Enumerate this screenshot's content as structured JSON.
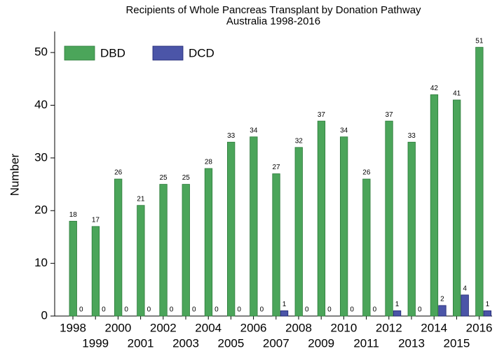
{
  "chart_data": {
    "type": "bar",
    "title": [
      "Recipients of Whole Pancreas Transplant by Donation Pathway",
      "Australia 1998-2016"
    ],
    "y_label": "Number",
    "categories": [
      "1998",
      "1999",
      "2000",
      "2001",
      "2002",
      "2003",
      "2004",
      "2005",
      "2006",
      "2007",
      "2008",
      "2009",
      "2010",
      "2011",
      "2012",
      "2013",
      "2014",
      "2015",
      "2016"
    ],
    "series": [
      {
        "name": "DBD",
        "color": "#4ba55a",
        "values": [
          18,
          17,
          26,
          21,
          25,
          25,
          28,
          33,
          34,
          27,
          32,
          37,
          34,
          26,
          37,
          33,
          42,
          41,
          51
        ]
      },
      {
        "name": "DCD",
        "color": "#4b55a8",
        "values": [
          0,
          0,
          0,
          0,
          0,
          0,
          0,
          0,
          0,
          1,
          0,
          0,
          0,
          0,
          1,
          0,
          2,
          4,
          1
        ]
      }
    ],
    "ylim": [
      0,
      54
    ],
    "yticks": [
      0,
      10,
      20,
      30,
      40,
      50
    ],
    "legend": "top-left"
  }
}
